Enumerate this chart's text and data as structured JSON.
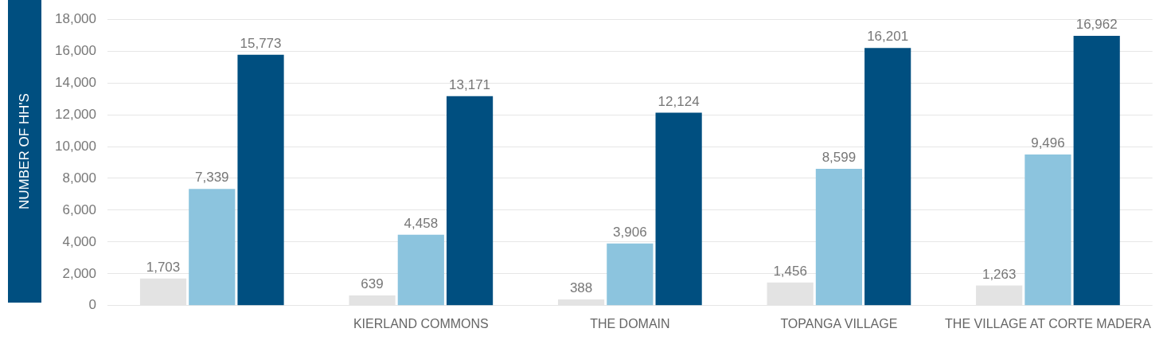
{
  "chart_data": {
    "type": "bar",
    "ylabel": "NUMBER OF HH'S",
    "categories": [
      null,
      "KIERLAND COMMONS",
      "THE DOMAIN",
      "TOPANGA VILLAGE",
      "THE VILLAGE AT CORTE MADERA"
    ],
    "series": [
      {
        "color": "#e3e3e3",
        "values": [
          1703,
          639,
          388,
          1456,
          1263
        ],
        "value_labels": [
          "1,703",
          "639",
          "388",
          "1,456",
          "1,263"
        ]
      },
      {
        "color": "#8cc4de",
        "values": [
          7339,
          4458,
          3906,
          8599,
          9496
        ],
        "value_labels": [
          "7,339",
          "4,458",
          "3,906",
          "8,599",
          "9,496"
        ]
      },
      {
        "color": "#004f80",
        "values": [
          15773,
          13171,
          12124,
          16201,
          16962
        ],
        "value_labels": [
          "15,773",
          "13,171",
          "12,124",
          "16,201",
          "16,962"
        ]
      }
    ],
    "ylim": [
      0,
      18000
    ],
    "yticks": [
      0,
      {
        "value": 2000,
        "label": "2,000"
      },
      {
        "value": 4000,
        "label": "4,000"
      },
      {
        "value": 6000,
        "label": "6,000"
      },
      {
        "value": 8000,
        "label": "8,000"
      },
      {
        "value": 10000,
        "label": "10,000"
      },
      {
        "value": 12000,
        "label": "12,000"
      },
      {
        "value": 14000,
        "label": "14,000"
      },
      {
        "value": 16000,
        "label": "16,000"
      },
      {
        "value": 18000,
        "label": "18,000"
      }
    ],
    "grid": "y",
    "legend": false
  }
}
